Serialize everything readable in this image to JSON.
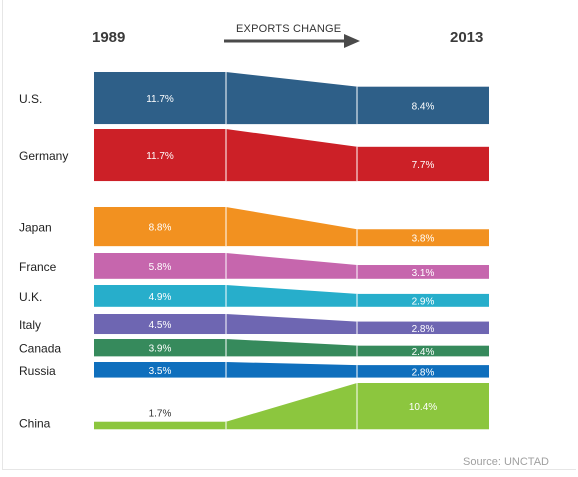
{
  "header": {
    "start_year": "1989",
    "end_year": "2013",
    "arrow_label": "EXPORTS CHANGE"
  },
  "source": "Source: UNCTAD",
  "chart_data": {
    "type": "slope-bar",
    "x": [
      "1989",
      "2013"
    ],
    "unit": "%",
    "series": [
      {
        "name": "U.S.",
        "label_1989": "11.7%",
        "label_2013": "8.4%",
        "v1989": 11.7,
        "v2013": 8.4,
        "color": "#2e5f88"
      },
      {
        "name": "Germany",
        "label_1989": "11.7%",
        "label_2013": "7.7%",
        "v1989": 11.7,
        "v2013": 7.7,
        "color": "#cc2027"
      },
      {
        "name": "Japan",
        "label_1989": "8.8%",
        "label_2013": "3.8%",
        "v1989": 8.8,
        "v2013": 3.8,
        "color": "#f29120"
      },
      {
        "name": "France",
        "label_1989": "5.8%",
        "label_2013": "3.1%",
        "v1989": 5.8,
        "v2013": 3.1,
        "color": "#c666ad"
      },
      {
        "name": "U.K.",
        "label_1989": "4.9%",
        "label_2013": "2.9%",
        "v1989": 4.9,
        "v2013": 2.9,
        "color": "#27aecb"
      },
      {
        "name": "Italy",
        "label_1989": "4.5%",
        "label_2013": "2.8%",
        "v1989": 4.5,
        "v2013": 2.8,
        "color": "#6e66b2"
      },
      {
        "name": "Canada",
        "label_1989": "3.9%",
        "label_2013": "2.4%",
        "v1989": 3.9,
        "v2013": 2.4,
        "color": "#368a5c"
      },
      {
        "name": "Russia",
        "label_1989": "3.5%",
        "label_2013": "2.8%",
        "v1989": 3.5,
        "v2013": 2.8,
        "color": "#0f6fbd"
      },
      {
        "name": "China",
        "label_1989": "1.7%",
        "label_2013": "10.4%",
        "v1989": 1.7,
        "v2013": 10.4,
        "color": "#8cc63e"
      }
    ]
  }
}
